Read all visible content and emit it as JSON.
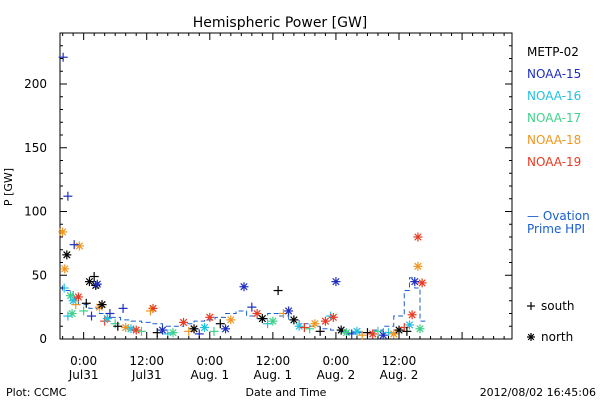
{
  "chart_data": {
    "type": "scatter",
    "title": "Hemispheric Power [GW]",
    "xlabel": "Date and Time",
    "ylabel": "P [GW]",
    "ylim": [
      0,
      240
    ],
    "xlim": [
      -4.5,
      81.5
    ],
    "x_unit": "hours since 2012-07-31 00:00 UT",
    "yticks": [
      0,
      50,
      100,
      150,
      200
    ],
    "xticks": [
      {
        "x": 0,
        "line1": "0:00",
        "line2": "Jul31"
      },
      {
        "x": 12,
        "line1": "12:00",
        "line2": "Jul31"
      },
      {
        "x": 24,
        "line1": "0:00",
        "line2": "Aug. 1"
      },
      {
        "x": 36,
        "line1": "12:00",
        "line2": "Aug. 1"
      },
      {
        "x": 48,
        "line1": "0:00",
        "line2": "Aug. 2"
      },
      {
        "x": 60,
        "line1": "12:00",
        "line2": "Aug. 2"
      }
    ],
    "legend_placement": "right",
    "series": [
      {
        "name": "METP-02",
        "color": "#000000"
      },
      {
        "name": "NOAA-15",
        "color": "#1f2ec0"
      },
      {
        "name": "NOAA-16",
        "color": "#22c0e0"
      },
      {
        "name": "NOAA-17",
        "color": "#3fd08a"
      },
      {
        "name": "NOAA-18",
        "color": "#f0961e"
      },
      {
        "name": "NOAA-19",
        "color": "#e83a22"
      }
    ],
    "model_legend": {
      "lines": [
        "— Ovation",
        "Prime HPI"
      ],
      "color": "#1a5fd0"
    },
    "marker_legend": [
      {
        "glyph": "+",
        "label": "south"
      },
      {
        "glyph": "*",
        "label": "north"
      }
    ],
    "ovation_hpi": [
      [
        -4,
        42
      ],
      [
        -2,
        38
      ],
      [
        -1,
        32
      ],
      [
        1,
        27
      ],
      [
        3,
        24
      ],
      [
        5,
        20
      ],
      [
        7,
        17
      ],
      [
        9,
        15
      ],
      [
        11,
        14
      ],
      [
        13,
        13
      ],
      [
        15,
        12
      ],
      [
        17,
        10
      ],
      [
        19,
        10
      ],
      [
        21,
        12
      ],
      [
        23,
        14
      ],
      [
        25,
        15
      ],
      [
        27,
        17
      ],
      [
        29,
        20
      ],
      [
        31,
        22
      ],
      [
        33,
        18
      ],
      [
        35,
        16
      ],
      [
        37,
        20
      ],
      [
        39,
        18
      ],
      [
        41,
        15
      ],
      [
        43,
        12
      ],
      [
        45,
        10
      ],
      [
        47,
        8
      ],
      [
        49,
        7
      ],
      [
        51,
        6
      ],
      [
        53,
        5
      ],
      [
        55,
        5
      ],
      [
        57,
        7
      ],
      [
        59,
        10
      ],
      [
        61,
        18
      ],
      [
        62,
        38
      ],
      [
        63,
        48
      ],
      [
        64,
        40
      ],
      [
        65,
        14
      ]
    ],
    "points": [
      {
        "series": "NOAA-15",
        "m": "+",
        "x": -3.9,
        "y": 221
      },
      {
        "series": "NOAA-15",
        "m": "+",
        "x": -3.0,
        "y": 112
      },
      {
        "series": "METP-02",
        "m": "*",
        "x": -3.2,
        "y": 66
      },
      {
        "series": "NOAA-18",
        "m": "*",
        "x": -4.0,
        "y": 84
      },
      {
        "series": "NOAA-18",
        "m": "*",
        "x": -0.8,
        "y": 73
      },
      {
        "series": "NOAA-15",
        "m": "+",
        "x": -1.8,
        "y": 74
      },
      {
        "series": "NOAA-18",
        "m": "*",
        "x": -3.6,
        "y": 55
      },
      {
        "series": "METP-02",
        "m": "*",
        "x": 1.1,
        "y": 45
      },
      {
        "series": "METP-02",
        "m": "*",
        "x": 2.3,
        "y": 42
      },
      {
        "series": "NOAA-15",
        "m": "*",
        "x": 2.6,
        "y": 43
      },
      {
        "series": "METP-02",
        "m": "+",
        "x": 2.0,
        "y": 49
      },
      {
        "series": "NOAA-16",
        "m": "+",
        "x": -3.7,
        "y": 40
      },
      {
        "series": "NOAA-17",
        "m": "*",
        "x": -2.5,
        "y": 34
      },
      {
        "series": "NOAA-16",
        "m": "*",
        "x": -2.0,
        "y": 30
      },
      {
        "series": "NOAA-18",
        "m": "+",
        "x": -1.5,
        "y": 27
      },
      {
        "series": "NOAA-19",
        "m": "*",
        "x": -1.0,
        "y": 33
      },
      {
        "series": "NOAA-17",
        "m": "+",
        "x": 0.0,
        "y": 22
      },
      {
        "series": "METP-02",
        "m": "+",
        "x": 0.5,
        "y": 28
      },
      {
        "series": "NOAA-15",
        "m": "+",
        "x": 1.5,
        "y": 18
      },
      {
        "series": "NOAA-16",
        "m": "+",
        "x": -3.0,
        "y": 18
      },
      {
        "series": "NOAA-17",
        "m": "*",
        "x": -2.2,
        "y": 20
      },
      {
        "series": "NOAA-18",
        "m": "*",
        "x": 3.0,
        "y": 25
      },
      {
        "series": "METP-02",
        "m": "*",
        "x": 3.5,
        "y": 27
      },
      {
        "series": "NOAA-19",
        "m": "+",
        "x": 4.0,
        "y": 14
      },
      {
        "series": "NOAA-16",
        "m": "*",
        "x": 4.5,
        "y": 16
      },
      {
        "series": "NOAA-15",
        "m": "+",
        "x": 5.0,
        "y": 20
      },
      {
        "series": "NOAA-17",
        "m": "+",
        "x": 6.0,
        "y": 12
      },
      {
        "series": "METP-02",
        "m": "+",
        "x": 6.5,
        "y": 10
      },
      {
        "series": "NOAA-15",
        "m": "+",
        "x": 7.5,
        "y": 24
      },
      {
        "series": "NOAA-18",
        "m": "*",
        "x": 8.0,
        "y": 9
      },
      {
        "series": "NOAA-16",
        "m": "*",
        "x": 9.0,
        "y": 8
      },
      {
        "series": "NOAA-19",
        "m": "*",
        "x": 10.0,
        "y": 7
      },
      {
        "series": "NOAA-17",
        "m": "+",
        "x": 11.0,
        "y": 6
      },
      {
        "series": "NOAA-19",
        "m": "*",
        "x": 13.2,
        "y": 24
      },
      {
        "series": "NOAA-18",
        "m": "+",
        "x": 12.7,
        "y": 22
      },
      {
        "series": "METP-02",
        "m": "+",
        "x": 14.0,
        "y": 5
      },
      {
        "series": "NOAA-15",
        "m": "*",
        "x": 15.0,
        "y": 7
      },
      {
        "series": "NOAA-16",
        "m": "+",
        "x": 16.0,
        "y": 4
      },
      {
        "series": "NOAA-17",
        "m": "*",
        "x": 17.0,
        "y": 5
      },
      {
        "series": "NOAA-19",
        "m": "*",
        "x": 19.0,
        "y": 13
      },
      {
        "series": "NOAA-18",
        "m": "+",
        "x": 20.0,
        "y": 6
      },
      {
        "series": "METP-02",
        "m": "*",
        "x": 21.0,
        "y": 8
      },
      {
        "series": "NOAA-15",
        "m": "+",
        "x": 22.0,
        "y": 4
      },
      {
        "series": "NOAA-16",
        "m": "*",
        "x": 23.0,
        "y": 9
      },
      {
        "series": "NOAA-19",
        "m": "*",
        "x": 24.0,
        "y": 17
      },
      {
        "series": "NOAA-17",
        "m": "+",
        "x": 24.8,
        "y": 6
      },
      {
        "series": "METP-02",
        "m": "+",
        "x": 26.0,
        "y": 12
      },
      {
        "series": "NOAA-15",
        "m": "*",
        "x": 27.0,
        "y": 8
      },
      {
        "series": "NOAA-18",
        "m": "*",
        "x": 28.0,
        "y": 15
      },
      {
        "series": "NOAA-15",
        "m": "*",
        "x": 30.5,
        "y": 41
      },
      {
        "series": "NOAA-15",
        "m": "+",
        "x": 32.0,
        "y": 25
      },
      {
        "series": "NOAA-19",
        "m": "*",
        "x": 33.0,
        "y": 20
      },
      {
        "series": "METP-02",
        "m": "*",
        "x": 34.0,
        "y": 16
      },
      {
        "series": "NOAA-16",
        "m": "+",
        "x": 35.0,
        "y": 12
      },
      {
        "series": "METP-02",
        "m": "+",
        "x": 37.0,
        "y": 38
      },
      {
        "series": "NOAA-17",
        "m": "*",
        "x": 36.0,
        "y": 14
      },
      {
        "series": "NOAA-18",
        "m": "+",
        "x": 38.0,
        "y": 20
      },
      {
        "series": "NOAA-15",
        "m": "*",
        "x": 39.0,
        "y": 22
      },
      {
        "series": "METP-02",
        "m": "*",
        "x": 40.0,
        "y": 15
      },
      {
        "series": "NOAA-16",
        "m": "*",
        "x": 41.0,
        "y": 10
      },
      {
        "series": "NOAA-19",
        "m": "+",
        "x": 42.0,
        "y": 9
      },
      {
        "series": "NOAA-17",
        "m": "+",
        "x": 43.0,
        "y": 8
      },
      {
        "series": "NOAA-18",
        "m": "*",
        "x": 44.0,
        "y": 12
      },
      {
        "series": "METP-02",
        "m": "+",
        "x": 45.0,
        "y": 6
      },
      {
        "series": "NOAA-19",
        "m": "*",
        "x": 46.0,
        "y": 14
      },
      {
        "series": "NOAA-16",
        "m": "+",
        "x": 47.0,
        "y": 18
      },
      {
        "series": "NOAA-15",
        "m": "*",
        "x": 48.0,
        "y": 45
      },
      {
        "series": "NOAA-19",
        "m": "*",
        "x": 47.5,
        "y": 17
      },
      {
        "series": "METP-02",
        "m": "*",
        "x": 49.0,
        "y": 7
      },
      {
        "series": "NOAA-17",
        "m": "*",
        "x": 50.0,
        "y": 5
      },
      {
        "series": "NOAA-15",
        "m": "+",
        "x": 51.0,
        "y": 4
      },
      {
        "series": "NOAA-16",
        "m": "*",
        "x": 52.0,
        "y": 6
      },
      {
        "series": "NOAA-18",
        "m": "+",
        "x": 53.0,
        "y": 3
      },
      {
        "series": "METP-02",
        "m": "+",
        "x": 54.0,
        "y": 5
      },
      {
        "series": "NOAA-19",
        "m": "*",
        "x": 55.0,
        "y": 4
      },
      {
        "series": "NOAA-17",
        "m": "+",
        "x": 56.0,
        "y": 6
      },
      {
        "series": "NOAA-15",
        "m": "*",
        "x": 57.0,
        "y": 3
      },
      {
        "series": "NOAA-16",
        "m": "+",
        "x": 58.0,
        "y": 5
      },
      {
        "series": "NOAA-18",
        "m": "*",
        "x": 59.0,
        "y": 4
      },
      {
        "series": "METP-02",
        "m": "*",
        "x": 60.0,
        "y": 7
      },
      {
        "series": "NOAA-19",
        "m": "+",
        "x": 61.0,
        "y": 9
      },
      {
        "series": "NOAA-19",
        "m": "*",
        "x": 62.5,
        "y": 19
      },
      {
        "series": "NOAA-18",
        "m": "*",
        "x": 63.6,
        "y": 57
      },
      {
        "series": "NOAA-19",
        "m": "*",
        "x": 63.6,
        "y": 80
      },
      {
        "series": "NOAA-15",
        "m": "*",
        "x": 63.0,
        "y": 45
      },
      {
        "series": "NOAA-19",
        "m": "*",
        "x": 64.4,
        "y": 44
      },
      {
        "series": "NOAA-16",
        "m": "*",
        "x": 62.0,
        "y": 11
      },
      {
        "series": "METP-02",
        "m": "+",
        "x": 61.5,
        "y": 6
      },
      {
        "series": "NOAA-17",
        "m": "*",
        "x": 64.0,
        "y": 8
      }
    ]
  },
  "footer": {
    "left": "Plot: CCMC",
    "right": "2012/08/02 16:45:06"
  }
}
